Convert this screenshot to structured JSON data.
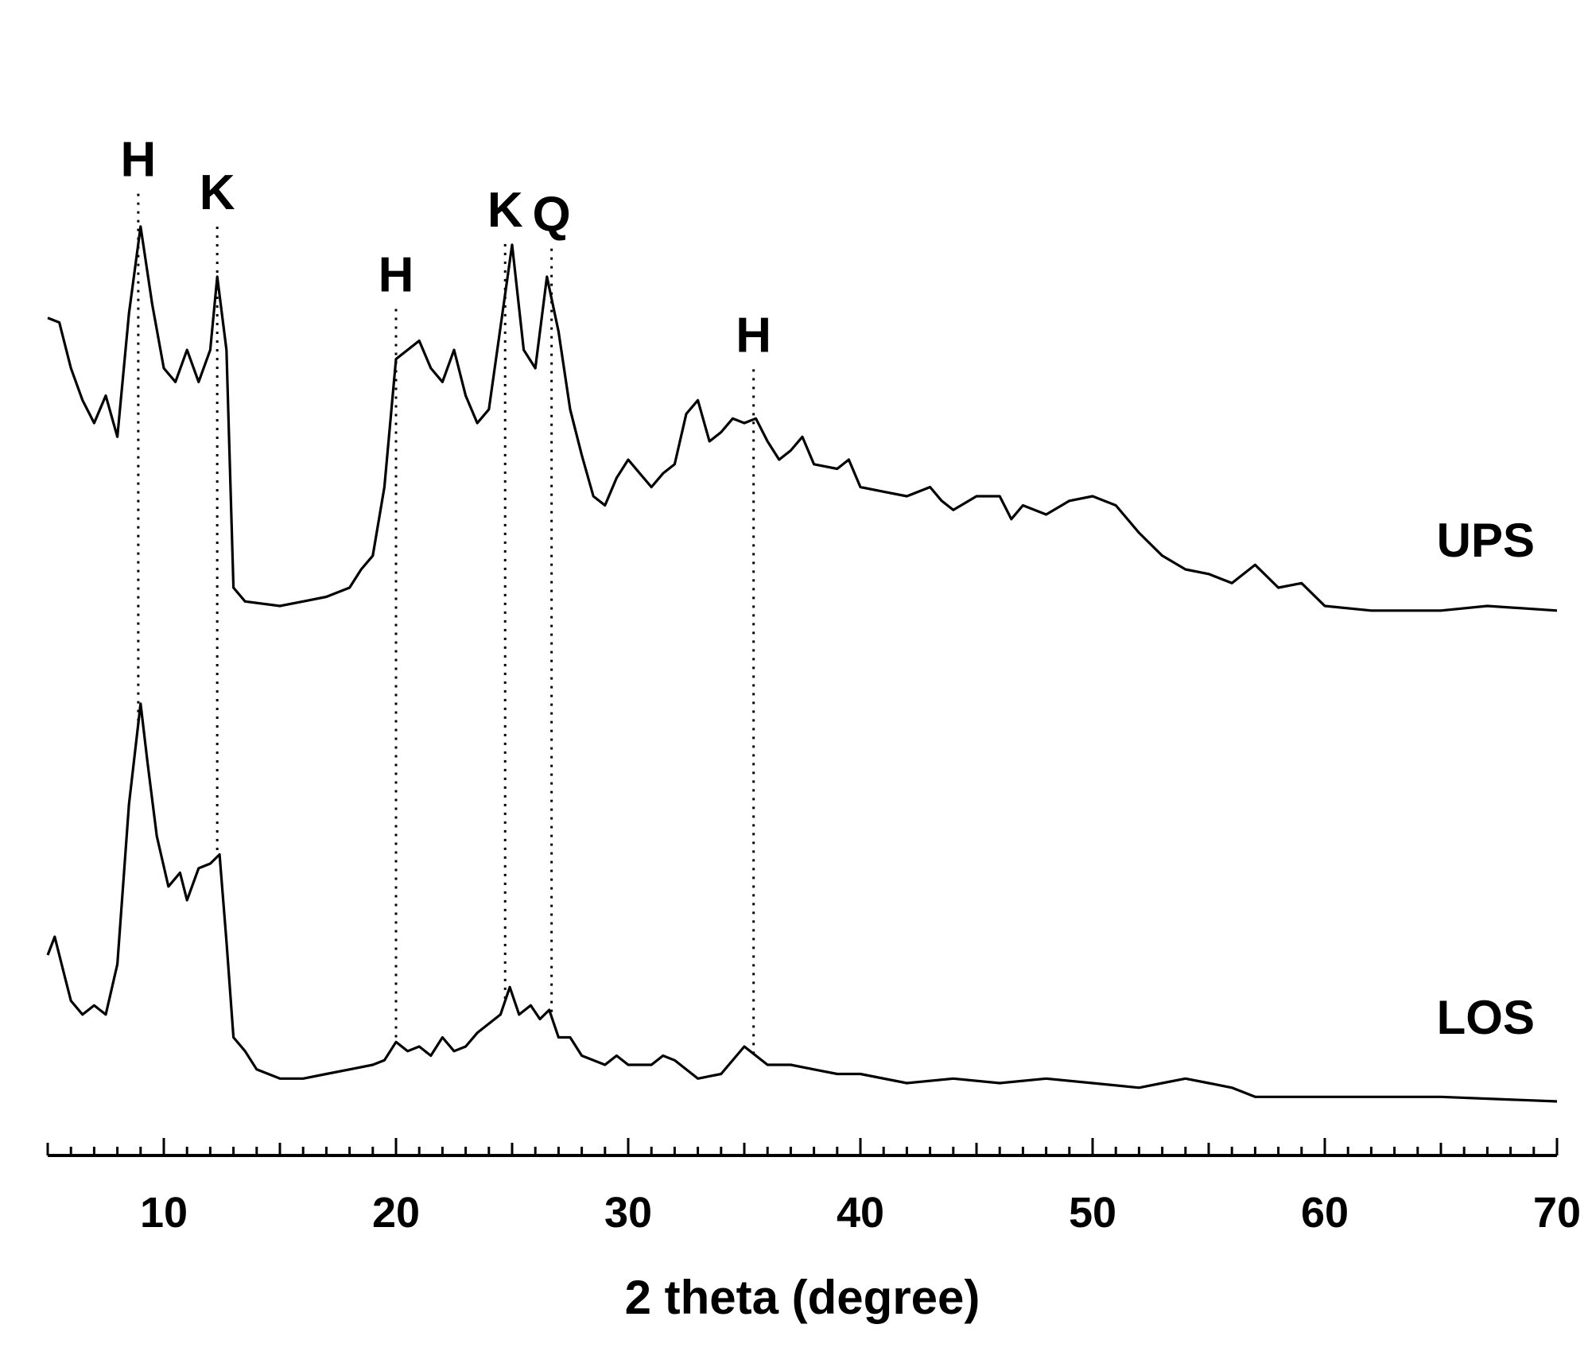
{
  "chart_data": {
    "type": "line",
    "title": "",
    "xlabel": "2 theta (degree)",
    "ylabel": "",
    "xlim": [
      5,
      70
    ],
    "xticks": [
      10,
      20,
      30,
      40,
      50,
      60,
      70
    ],
    "y_axis_shown": false,
    "grid": false,
    "line_color": "#000000",
    "series": [
      {
        "name": "UPS",
        "points": [
          [
            5,
            0.67
          ],
          [
            5.5,
            0.66
          ],
          [
            6,
            0.56
          ],
          [
            6.5,
            0.49
          ],
          [
            7,
            0.44
          ],
          [
            7.5,
            0.5
          ],
          [
            8,
            0.41
          ],
          [
            8.5,
            0.68
          ],
          [
            9,
            0.87
          ],
          [
            9.5,
            0.7
          ],
          [
            10,
            0.56
          ],
          [
            10.5,
            0.53
          ],
          [
            11,
            0.6
          ],
          [
            11.5,
            0.53
          ],
          [
            12,
            0.6
          ],
          [
            12.3,
            0.76
          ],
          [
            12.7,
            0.6
          ],
          [
            13,
            0.08
          ],
          [
            13.5,
            0.05
          ],
          [
            15,
            0.04
          ],
          [
            16,
            0.05
          ],
          [
            17,
            0.06
          ],
          [
            18,
            0.08
          ],
          [
            18.5,
            0.12
          ],
          [
            19,
            0.15
          ],
          [
            19.5,
            0.3
          ],
          [
            20,
            0.58
          ],
          [
            20.5,
            0.6
          ],
          [
            21,
            0.62
          ],
          [
            21.5,
            0.56
          ],
          [
            22,
            0.53
          ],
          [
            22.5,
            0.6
          ],
          [
            23,
            0.5
          ],
          [
            23.5,
            0.44
          ],
          [
            24,
            0.47
          ],
          [
            24.5,
            0.65
          ],
          [
            25,
            0.83
          ],
          [
            25.5,
            0.6
          ],
          [
            26,
            0.56
          ],
          [
            26.5,
            0.76
          ],
          [
            27,
            0.64
          ],
          [
            27.5,
            0.47
          ],
          [
            28,
            0.37
          ],
          [
            28.5,
            0.28
          ],
          [
            29,
            0.26
          ],
          [
            29.5,
            0.32
          ],
          [
            30,
            0.36
          ],
          [
            30.5,
            0.33
          ],
          [
            31,
            0.3
          ],
          [
            31.5,
            0.33
          ],
          [
            32,
            0.35
          ],
          [
            32.5,
            0.46
          ],
          [
            33,
            0.49
          ],
          [
            33.5,
            0.4
          ],
          [
            34,
            0.42
          ],
          [
            34.5,
            0.45
          ],
          [
            35,
            0.44
          ],
          [
            35.5,
            0.45
          ],
          [
            36,
            0.4
          ],
          [
            36.5,
            0.36
          ],
          [
            37,
            0.38
          ],
          [
            37.5,
            0.41
          ],
          [
            38,
            0.35
          ],
          [
            39,
            0.34
          ],
          [
            39.5,
            0.36
          ],
          [
            40,
            0.3
          ],
          [
            41,
            0.29
          ],
          [
            42,
            0.28
          ],
          [
            43,
            0.3
          ],
          [
            43.5,
            0.27
          ],
          [
            44,
            0.25
          ],
          [
            45,
            0.28
          ],
          [
            46,
            0.28
          ],
          [
            46.5,
            0.23
          ],
          [
            47,
            0.26
          ],
          [
            48,
            0.24
          ],
          [
            49,
            0.27
          ],
          [
            50,
            0.28
          ],
          [
            51,
            0.26
          ],
          [
            52,
            0.2
          ],
          [
            53,
            0.15
          ],
          [
            54,
            0.12
          ],
          [
            55,
            0.11
          ],
          [
            56,
            0.09
          ],
          [
            57,
            0.13
          ],
          [
            58,
            0.08
          ],
          [
            59,
            0.09
          ],
          [
            60,
            0.04
          ],
          [
            62,
            0.03
          ],
          [
            65,
            0.03
          ],
          [
            67,
            0.04
          ],
          [
            70,
            0.03
          ]
        ]
      },
      {
        "name": "LOS",
        "points": [
          [
            5,
            0.32
          ],
          [
            5.3,
            0.36
          ],
          [
            5.7,
            0.28
          ],
          [
            6,
            0.22
          ],
          [
            6.5,
            0.19
          ],
          [
            7,
            0.21
          ],
          [
            7.5,
            0.19
          ],
          [
            8,
            0.3
          ],
          [
            8.5,
            0.65
          ],
          [
            9,
            0.87
          ],
          [
            9.3,
            0.74
          ],
          [
            9.7,
            0.58
          ],
          [
            10.2,
            0.47
          ],
          [
            10.7,
            0.5
          ],
          [
            11,
            0.44
          ],
          [
            11.5,
            0.51
          ],
          [
            12,
            0.52
          ],
          [
            12.4,
            0.54
          ],
          [
            12.7,
            0.35
          ],
          [
            13,
            0.14
          ],
          [
            13.5,
            0.11
          ],
          [
            14,
            0.07
          ],
          [
            15,
            0.05
          ],
          [
            16,
            0.05
          ],
          [
            17,
            0.06
          ],
          [
            18,
            0.07
          ],
          [
            19,
            0.08
          ],
          [
            19.5,
            0.09
          ],
          [
            20,
            0.13
          ],
          [
            20.5,
            0.11
          ],
          [
            21,
            0.12
          ],
          [
            21.5,
            0.1
          ],
          [
            22,
            0.14
          ],
          [
            22.5,
            0.11
          ],
          [
            23,
            0.12
          ],
          [
            23.5,
            0.15
          ],
          [
            24,
            0.17
          ],
          [
            24.5,
            0.19
          ],
          [
            24.9,
            0.25
          ],
          [
            25.3,
            0.19
          ],
          [
            25.8,
            0.21
          ],
          [
            26.2,
            0.18
          ],
          [
            26.6,
            0.2
          ],
          [
            27,
            0.14
          ],
          [
            27.5,
            0.14
          ],
          [
            28,
            0.1
          ],
          [
            29,
            0.08
          ],
          [
            29.5,
            0.1
          ],
          [
            30,
            0.08
          ],
          [
            31,
            0.08
          ],
          [
            31.5,
            0.1
          ],
          [
            32,
            0.09
          ],
          [
            33,
            0.05
          ],
          [
            34,
            0.06
          ],
          [
            35,
            0.12
          ],
          [
            35.5,
            0.1
          ],
          [
            36,
            0.08
          ],
          [
            37,
            0.08
          ],
          [
            38,
            0.07
          ],
          [
            39,
            0.06
          ],
          [
            40,
            0.06
          ],
          [
            42,
            0.04
          ],
          [
            44,
            0.05
          ],
          [
            46,
            0.04
          ],
          [
            48,
            0.05
          ],
          [
            50,
            0.04
          ],
          [
            52,
            0.03
          ],
          [
            53,
            0.04
          ],
          [
            54,
            0.05
          ],
          [
            55,
            0.04
          ],
          [
            56,
            0.03
          ],
          [
            57,
            0.01
          ],
          [
            60,
            0.01
          ],
          [
            65,
            0.01
          ],
          [
            70,
            0.0
          ]
        ]
      }
    ],
    "series_labels": [
      {
        "text": "UPS",
        "series": "UPS"
      },
      {
        "text": "LOS",
        "series": "LOS"
      }
    ],
    "peak_annotations": [
      {
        "label": "H",
        "x": 8.9
      },
      {
        "label": "K",
        "x": 12.3
      },
      {
        "label": "H",
        "x": 20.0
      },
      {
        "label": "K",
        "x": 24.7
      },
      {
        "label": "Q",
        "x": 26.7
      },
      {
        "label": "H",
        "x": 35.4
      }
    ]
  }
}
